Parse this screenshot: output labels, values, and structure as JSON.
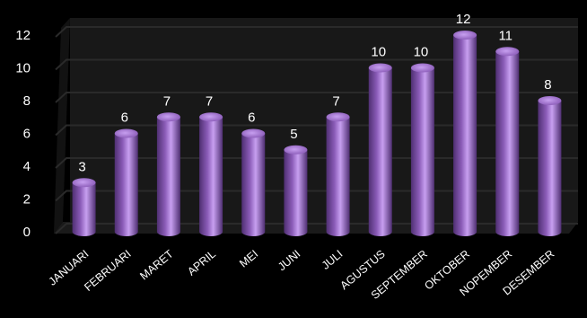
{
  "chart_data": {
    "type": "bar",
    "categories": [
      "JANUARI",
      "FEBRUARI",
      "MARET",
      "APRIL",
      "MEI",
      "JUNI",
      "JULI",
      "AGUSTUS",
      "SEPTEMBER",
      "OKTOBER",
      "NOPEMBER",
      "DESEMBER"
    ],
    "values": [
      3,
      6,
      7,
      7,
      6,
      5,
      7,
      10,
      10,
      12,
      11,
      8
    ],
    "ylim": [
      0,
      12
    ],
    "yticks": [
      "0",
      "2",
      "4",
      "6",
      "8",
      "10",
      "12"
    ],
    "grid": true,
    "bar_shape": "cylinder",
    "colors": {
      "background": "#000000",
      "bar": "#8b5cb8",
      "bar_dark": "#4f2f72",
      "bar_light": "#c79ff0",
      "grid": "#2a2a2a",
      "wall": "#181818",
      "text": "#ffffff"
    }
  }
}
